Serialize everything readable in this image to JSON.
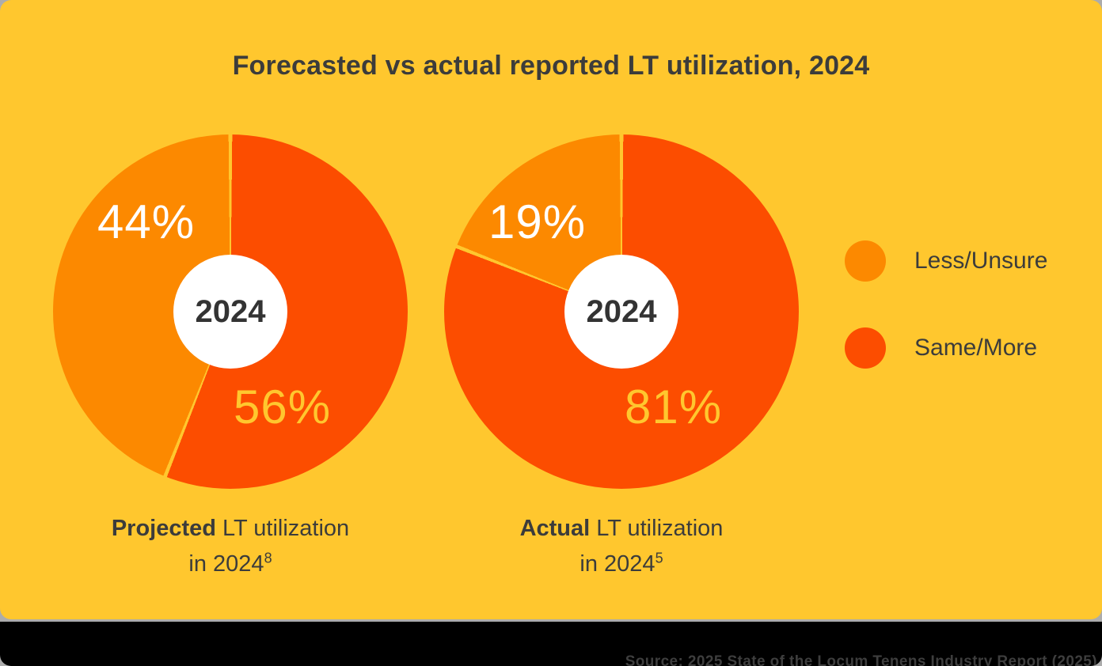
{
  "colors": {
    "background": "#FFC72E",
    "slice_light": "#FC8900",
    "slice_dark": "#FC4D00",
    "divider": "#FFC72E",
    "heading_text": "#3C3C3B",
    "center_year_text": "#333333",
    "label_on_light": "#FFFFFF",
    "label_on_dark": "#FFC72E",
    "footer_bg": "#000000",
    "footer_text": "#3E3E3E"
  },
  "chart_data": {
    "type": "pie",
    "title": "Forecasted vs actual reported LT utilization, 2024",
    "legend_position": "right",
    "grid": false,
    "legend": [
      {
        "label": "Less/Unsure",
        "color": "#FC8900"
      },
      {
        "label": "Same/More",
        "color": "#FC4D00"
      }
    ],
    "pies": [
      {
        "name": "Projected LT utilization in 2024",
        "center_label": "2024",
        "slices": [
          {
            "label": "Same/More",
            "value": 56,
            "color": "#FC4D00"
          },
          {
            "label": "Less/Unsure",
            "value": 44,
            "color": "#FC8900"
          }
        ],
        "light_pct_label": "44%",
        "dark_pct_label": "56%",
        "caption_bold": "Projected",
        "caption_rest": " LT utilization",
        "caption_line2": "in 2024",
        "caption_superscript": "8"
      },
      {
        "name": "Actual LT utilization in 2024",
        "center_label": "2024",
        "slices": [
          {
            "label": "Same/More",
            "value": 81,
            "color": "#FC4D00"
          },
          {
            "label": "Less/Unsure",
            "value": 19,
            "color": "#FC8900"
          }
        ],
        "light_pct_label": "19%",
        "dark_pct_label": "81%",
        "caption_bold": "Actual",
        "caption_rest": " LT utilization",
        "caption_line2": "in 2024",
        "caption_superscript": "5"
      }
    ]
  },
  "footer": {
    "source_text": "Source: 2025 State of the Locum Tenens Industry Report (2025)"
  }
}
